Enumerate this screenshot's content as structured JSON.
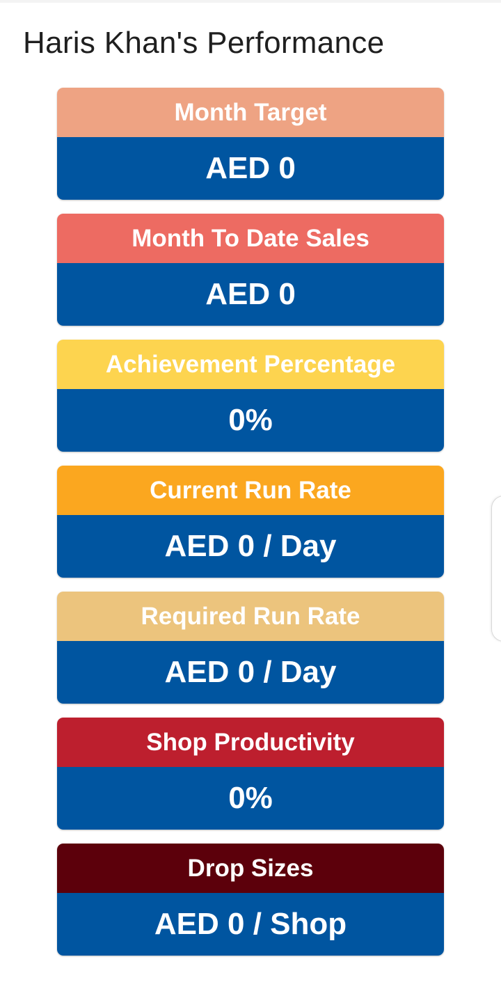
{
  "page": {
    "title": "Haris Khan's Performance"
  },
  "colors": {
    "value_background": "#0055a0",
    "value_text": "#ffffff"
  },
  "cards": [
    {
      "label": "Month Target",
      "value": "AED 0",
      "header_color": "#eea383"
    },
    {
      "label": "Month To Date Sales",
      "value": "AED 0",
      "header_color": "#ed6b62"
    },
    {
      "label": "Achievement Percentage",
      "value": "0%",
      "header_color": "#fdd44f"
    },
    {
      "label": "Current Run Rate",
      "value": "AED 0 / Day",
      "header_color": "#fba71f"
    },
    {
      "label": "Required Run Rate",
      "value": "AED 0 / Day",
      "header_color": "#ecc47d"
    },
    {
      "label": "Shop Productivity",
      "value": "0%",
      "header_color": "#bd1f2e"
    },
    {
      "label": "Drop Sizes",
      "value": "AED 0 / Shop",
      "header_color": "#5c000b"
    }
  ]
}
